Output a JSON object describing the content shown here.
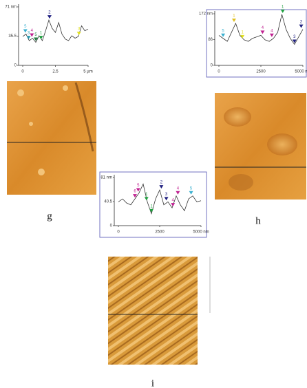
{
  "chart_data": [
    {
      "type": "line",
      "xlim": [
        0,
        5
      ],
      "ylim": [
        0,
        71
      ],
      "yticks": [
        {
          "value": 71,
          "label": "71 nm"
        },
        {
          "value": 35.5,
          "label": "35.5"
        },
        0
      ],
      "xticks": [
        0,
        2.5,
        {
          "value": 5,
          "label": "5 µm"
        }
      ],
      "x": [
        0,
        0.25,
        0.5,
        0.75,
        1,
        1.25,
        1.5,
        1.75,
        2,
        2.25,
        2.5,
        2.75,
        3,
        3.25,
        3.5,
        3.75,
        4,
        4.25,
        4.5,
        4.75,
        5
      ],
      "series": [
        {
          "color": "#333",
          "values": [
            35,
            38,
            30,
            33,
            28,
            36,
            30,
            42,
            55,
            45,
            40,
            52,
            38,
            32,
            30,
            36,
            33,
            35,
            48,
            42,
            44
          ]
        }
      ],
      "markers": [
        {
          "x": 0.2,
          "label": "5",
          "color": "#3ab0d0"
        },
        {
          "x": 0.45,
          "label": "3",
          "color": "#2a9ab0"
        },
        {
          "x": 0.7,
          "label": "4",
          "color": "#c02090"
        },
        {
          "x": 1,
          "label": "5",
          "color": "#208040"
        },
        {
          "x": 1.4,
          "label": "1",
          "color": "#20a040"
        },
        {
          "x": 2.05,
          "label": "2",
          "color": "#202080"
        },
        {
          "x": 4.3,
          "label": "3",
          "color": "#e0e020"
        }
      ],
      "panel_label": "g"
    },
    {
      "type": "line",
      "xlim": [
        0,
        5000
      ],
      "ylim": [
        0,
        172
      ],
      "yticks": [
        {
          "value": 172,
          "label": "172 nm"
        },
        86,
        0
      ],
      "xticks": [
        0,
        2500,
        {
          "value": 5000,
          "label": "5000 nm"
        }
      ],
      "x": [
        0,
        250,
        500,
        750,
        1000,
        1250,
        1500,
        1750,
        2000,
        2250,
        2500,
        2750,
        3000,
        3250,
        3500,
        3750,
        4000,
        4250,
        4500,
        4750,
        5000
      ],
      "series": [
        {
          "color": "#333",
          "values": [
            100,
            90,
            80,
            110,
            140,
            100,
            85,
            80,
            90,
            95,
            100,
            85,
            80,
            90,
            110,
            170,
            120,
            90,
            70,
            95,
            120
          ]
        }
      ],
      "markers": [
        {
          "x": 250,
          "label": "5",
          "color": "#3ab0d0"
        },
        {
          "x": 900,
          "label": "1",
          "color": "#e0c020"
        },
        {
          "x": 1400,
          "label": "1",
          "color": "#e0e020"
        },
        {
          "x": 2600,
          "label": "4",
          "color": "#c02090"
        },
        {
          "x": 3150,
          "label": "4",
          "color": "#c02090"
        },
        {
          "x": 3800,
          "label": "1",
          "color": "#20a040"
        },
        {
          "x": 4500,
          "label": "3",
          "color": "#202080"
        },
        {
          "x": 4900,
          "label": "2",
          "color": "#202080"
        }
      ],
      "panel_label": "h"
    },
    {
      "type": "line",
      "xlim": [
        0,
        5000
      ],
      "ylim": [
        0,
        81
      ],
      "yticks": [
        {
          "value": 81,
          "label": "81 nm"
        },
        40.5,
        0
      ],
      "xticks": [
        0,
        2500,
        {
          "value": 5000,
          "label": "5000 nm"
        }
      ],
      "x": [
        0,
        250,
        500,
        750,
        1000,
        1250,
        1500,
        1750,
        2000,
        2250,
        2500,
        2750,
        3000,
        3250,
        3500,
        3750,
        4000,
        4250,
        4500,
        4750,
        5000
      ],
      "series": [
        {
          "color": "#333",
          "values": [
            40,
            45,
            38,
            35,
            45,
            55,
            70,
            40,
            20,
            45,
            60,
            35,
            40,
            30,
            50,
            35,
            25,
            45,
            50,
            40,
            42
          ]
        }
      ],
      "markers": [
        {
          "x": 1000,
          "label": "6",
          "color": "#c02090"
        },
        {
          "x": 1200,
          "label": "5",
          "color": "#c02090"
        },
        {
          "x": 1700,
          "label": "1",
          "color": "#20a040"
        },
        {
          "x": 2000,
          "label": "1",
          "color": "#20a040"
        },
        {
          "x": 2600,
          "label": "2",
          "color": "#202080"
        },
        {
          "x": 2900,
          "label": "3",
          "color": "#202080"
        },
        {
          "x": 3300,
          "label": "4",
          "color": "#c02090"
        },
        {
          "x": 3600,
          "label": "4",
          "color": "#c02090"
        },
        {
          "x": 4400,
          "label": "5",
          "color": "#3ab0d0"
        }
      ],
      "panel_label": "i"
    }
  ]
}
